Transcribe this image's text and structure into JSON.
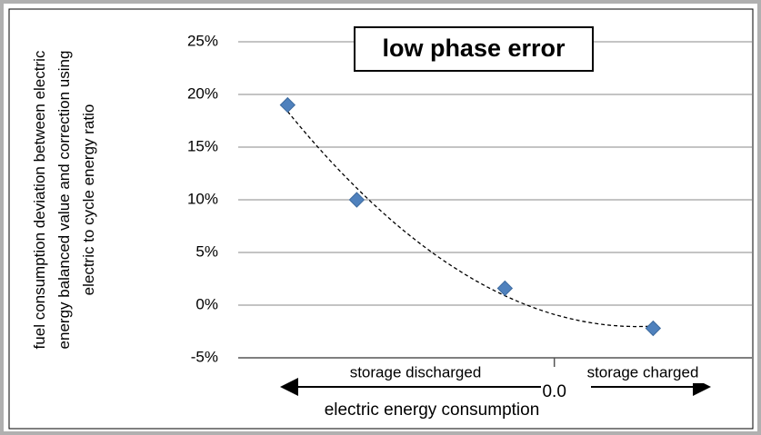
{
  "chart_data": {
    "type": "scatter",
    "title": "low phase error",
    "y_label": "fuel consumption deviation between electric energy balanced value and correction using electric to cycle energy ratio",
    "x_label": "electric energy consumption",
    "annotations": [
      "storage discharged",
      "storage charged"
    ],
    "x": [
      -2.7,
      -2.0,
      -0.5,
      1.0
    ],
    "series": [
      {
        "color": "#4f81bd",
        "values": [
          19.0,
          10.0,
          1.6,
          -2.2
        ]
      }
    ],
    "trendline": "polynomial",
    "xlim": [
      -3.2,
      2.0
    ],
    "xticks": [
      {
        "value": 0,
        "label": "0.0"
      }
    ],
    "ylim": [
      -5,
      25
    ],
    "yticks": [
      {
        "value": -5,
        "label": "-5%"
      },
      {
        "value": 0,
        "label": "0%"
      },
      {
        "value": 5,
        "label": "5%"
      },
      {
        "value": 10,
        "label": "10%"
      },
      {
        "value": 15,
        "label": "15%"
      },
      {
        "value": 20,
        "label": "20%"
      },
      {
        "value": 25,
        "label": "25%"
      }
    ],
    "grid": true
  }
}
